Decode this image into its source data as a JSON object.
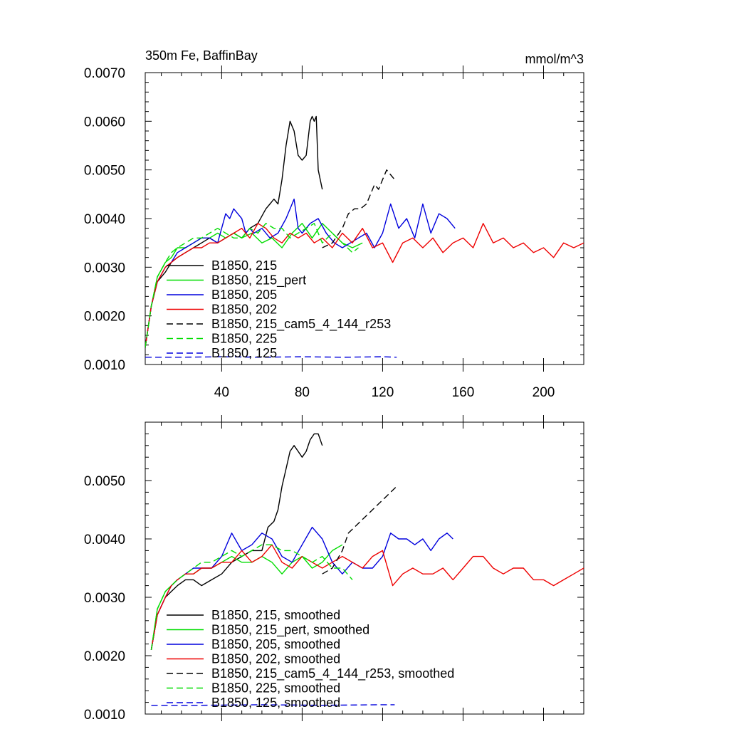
{
  "chart_data": [
    {
      "type": "line",
      "title": "350m Fe, BaffinBay",
      "units": "mmol/m^3",
      "xlim": [
        2,
        220
      ],
      "ylim": [
        0.001,
        0.007
      ],
      "xticks": [
        40,
        80,
        120,
        160,
        200
      ],
      "yticks": [
        0.001,
        0.002,
        0.003,
        0.004,
        0.005,
        0.006,
        0.007
      ],
      "ytick_labels": [
        "0.0010",
        "0.0020",
        "0.0030",
        "0.0040",
        "0.0050",
        "0.0060",
        "0.0070"
      ],
      "xtick_labels": [
        "40",
        "80",
        "120",
        "160",
        "200"
      ],
      "legend_position": "bottom-left",
      "grid": false,
      "series": [
        {
          "name": "B1850, 215",
          "color": "#000000",
          "dash": "solid",
          "x": [
            2,
            5,
            8,
            12,
            15,
            18,
            22,
            26,
            30,
            34,
            38,
            42,
            46,
            50,
            54,
            58,
            62,
            64,
            66,
            68,
            70,
            72,
            74,
            76,
            78,
            80,
            82,
            84,
            85,
            86,
            87,
            88,
            90
          ],
          "y": [
            0.00135,
            0.0022,
            0.0027,
            0.0029,
            0.0031,
            0.0032,
            0.0033,
            0.0034,
            0.0035,
            0.0036,
            0.0035,
            0.0036,
            0.0037,
            0.0036,
            0.0038,
            0.0039,
            0.0042,
            0.0043,
            0.0044,
            0.0043,
            0.0048,
            0.0055,
            0.006,
            0.0058,
            0.0053,
            0.0052,
            0.0053,
            0.006,
            0.0061,
            0.006,
            0.0061,
            0.005,
            0.0046
          ]
        },
        {
          "name": "B1850, 215_pert",
          "color": "#00dd00",
          "dash": "solid",
          "x": [
            2,
            5,
            8,
            12,
            15,
            18,
            22,
            26,
            30,
            34,
            38,
            42,
            46,
            50,
            55,
            60,
            65,
            70,
            75,
            80,
            85,
            90,
            95,
            100,
            105,
            110
          ],
          "y": [
            0.00135,
            0.0022,
            0.0028,
            0.0031,
            0.0032,
            0.0034,
            0.0034,
            0.0035,
            0.0036,
            0.0036,
            0.0037,
            0.0036,
            0.0037,
            0.0036,
            0.0037,
            0.0035,
            0.0036,
            0.0034,
            0.0037,
            0.0039,
            0.0036,
            0.0039,
            0.0037,
            0.0035,
            0.0034,
            0.0035
          ]
        },
        {
          "name": "B1850, 205",
          "color": "#0000dd",
          "dash": "solid",
          "x": [
            2,
            5,
            8,
            12,
            15,
            18,
            22,
            26,
            30,
            34,
            38,
            42,
            44,
            46,
            48,
            50,
            52,
            54,
            56,
            60,
            64,
            68,
            72,
            76,
            78,
            80,
            84,
            88,
            92,
            96,
            100,
            104,
            108,
            112,
            116,
            120,
            124,
            128,
            132,
            136,
            140,
            144,
            148,
            152,
            156
          ],
          "y": [
            0.00135,
            0.0022,
            0.0027,
            0.003,
            0.0031,
            0.0033,
            0.0034,
            0.0035,
            0.0036,
            0.0036,
            0.0035,
            0.0041,
            0.004,
            0.0042,
            0.0041,
            0.004,
            0.0037,
            0.0038,
            0.0037,
            0.0038,
            0.0036,
            0.0037,
            0.004,
            0.0044,
            0.0038,
            0.0037,
            0.0039,
            0.004,
            0.0037,
            0.0035,
            0.0034,
            0.0035,
            0.0036,
            0.0037,
            0.0034,
            0.0037,
            0.0043,
            0.0038,
            0.004,
            0.0036,
            0.0043,
            0.0037,
            0.0041,
            0.004,
            0.0038
          ]
        },
        {
          "name": "B1850, 202",
          "color": "#ee0000",
          "dash": "solid",
          "x": [
            2,
            5,
            8,
            12,
            15,
            18,
            22,
            26,
            30,
            34,
            38,
            42,
            46,
            50,
            54,
            58,
            62,
            66,
            70,
            74,
            78,
            82,
            86,
            90,
            95,
            100,
            105,
            110,
            115,
            120,
            125,
            130,
            135,
            140,
            145,
            150,
            155,
            160,
            165,
            170,
            175,
            180,
            185,
            190,
            195,
            200,
            205,
            210,
            215,
            220
          ],
          "y": [
            0.00135,
            0.0022,
            0.0027,
            0.003,
            0.0031,
            0.0032,
            0.0033,
            0.0034,
            0.0034,
            0.0035,
            0.0035,
            0.0036,
            0.0037,
            0.0038,
            0.0036,
            0.0039,
            0.0038,
            0.0036,
            0.0035,
            0.0037,
            0.0036,
            0.0037,
            0.0035,
            0.0036,
            0.0034,
            0.0037,
            0.0035,
            0.0038,
            0.0034,
            0.0035,
            0.0031,
            0.0035,
            0.0036,
            0.0034,
            0.0036,
            0.0033,
            0.0035,
            0.0036,
            0.0034,
            0.0039,
            0.0035,
            0.0036,
            0.0034,
            0.0035,
            0.0033,
            0.0034,
            0.0032,
            0.0035,
            0.0034,
            0.0035
          ]
        },
        {
          "name": "B1850, 215_cam5_4_144_r253",
          "color": "#000000",
          "dash": "dashed",
          "x": [
            90,
            95,
            100,
            103,
            106,
            109,
            112,
            114,
            116,
            118,
            120,
            122,
            124,
            126
          ],
          "y": [
            0.0034,
            0.0035,
            0.0038,
            0.0041,
            0.0042,
            0.0042,
            0.0043,
            0.0045,
            0.0047,
            0.0046,
            0.0048,
            0.005,
            0.0049,
            0.0048
          ]
        },
        {
          "name": "B1850, 225",
          "color": "#00dd00",
          "dash": "dashed",
          "x": [
            2,
            5,
            8,
            12,
            15,
            18,
            22,
            26,
            30,
            34,
            38,
            42,
            46,
            50,
            54,
            58,
            62,
            66,
            70,
            74,
            78,
            82,
            86,
            90,
            95,
            100,
            105,
            108
          ],
          "y": [
            0.00135,
            0.0022,
            0.0028,
            0.0031,
            0.0033,
            0.0034,
            0.0035,
            0.0036,
            0.0036,
            0.0037,
            0.0038,
            0.0037,
            0.0036,
            0.0036,
            0.0038,
            0.0037,
            0.0039,
            0.0038,
            0.0038,
            0.0036,
            0.0037,
            0.0038,
            0.0039,
            0.0035,
            0.0037,
            0.0035,
            0.0033,
            0.0034
          ]
        },
        {
          "name": "B1850, 125",
          "color": "#0000dd",
          "dash": "dashed",
          "x": [
            2,
            20,
            40,
            60,
            80,
            100,
            120,
            127
          ],
          "y": [
            0.00115,
            0.00115,
            0.00116,
            0.00115,
            0.00116,
            0.00115,
            0.00116,
            0.00115
          ]
        }
      ]
    },
    {
      "type": "line",
      "title": "",
      "xlim": [
        2,
        220
      ],
      "ylim": [
        0.001,
        0.006
      ],
      "xticks": [
        40,
        80,
        120,
        160,
        200
      ],
      "yticks": [
        0.001,
        0.002,
        0.003,
        0.004,
        0.005
      ],
      "ytick_labels": [
        "0.0010",
        "0.0020",
        "0.0030",
        "0.0040",
        "0.0050"
      ],
      "legend_position": "bottom-left",
      "grid": false,
      "series": [
        {
          "name": "B1850, 215, smoothed",
          "color": "#000000",
          "dash": "solid",
          "x": [
            5,
            8,
            12,
            15,
            18,
            22,
            26,
            30,
            35,
            40,
            45,
            50,
            55,
            60,
            63,
            66,
            68,
            70,
            72,
            74,
            76,
            78,
            80,
            82,
            84,
            86,
            88,
            90
          ],
          "y": [
            0.0021,
            0.0027,
            0.003,
            0.0031,
            0.0032,
            0.0033,
            0.0033,
            0.0032,
            0.0033,
            0.0034,
            0.0036,
            0.0037,
            0.0038,
            0.0038,
            0.0042,
            0.0043,
            0.0045,
            0.0049,
            0.0052,
            0.0055,
            0.0056,
            0.0055,
            0.0054,
            0.0055,
            0.0057,
            0.0058,
            0.0058,
            0.0056
          ]
        },
        {
          "name": "B1850, 215_pert, smoothed",
          "color": "#00dd00",
          "dash": "solid",
          "x": [
            5,
            8,
            12,
            15,
            18,
            22,
            26,
            30,
            35,
            40,
            45,
            50,
            55,
            60,
            65,
            70,
            75,
            80,
            85,
            90,
            95,
            100
          ],
          "y": [
            0.0021,
            0.0028,
            0.0031,
            0.0032,
            0.0033,
            0.0034,
            0.0034,
            0.0035,
            0.0035,
            0.0036,
            0.0037,
            0.0036,
            0.0036,
            0.0037,
            0.0036,
            0.0034,
            0.0036,
            0.0037,
            0.0035,
            0.0036,
            0.0038,
            0.0039
          ]
        },
        {
          "name": "B1850, 205, smoothed",
          "color": "#0000dd",
          "dash": "solid",
          "x": [
            5,
            8,
            12,
            15,
            18,
            22,
            26,
            30,
            35,
            40,
            45,
            50,
            55,
            60,
            65,
            70,
            75,
            80,
            85,
            90,
            95,
            100,
            105,
            110,
            115,
            120,
            124,
            128,
            132,
            136,
            140,
            144,
            148,
            152,
            155
          ],
          "y": [
            0.0021,
            0.0027,
            0.003,
            0.0032,
            0.0033,
            0.0034,
            0.0035,
            0.0035,
            0.0035,
            0.0037,
            0.0041,
            0.0038,
            0.0039,
            0.0041,
            0.004,
            0.0037,
            0.0036,
            0.0039,
            0.0042,
            0.004,
            0.0036,
            0.0034,
            0.0036,
            0.0035,
            0.0035,
            0.0037,
            0.0041,
            0.004,
            0.004,
            0.0039,
            0.004,
            0.0038,
            0.004,
            0.0041,
            0.004
          ]
        },
        {
          "name": "B1850, 202, smoothed",
          "color": "#ee0000",
          "dash": "solid",
          "x": [
            5,
            8,
            12,
            15,
            18,
            22,
            26,
            30,
            35,
            40,
            45,
            50,
            55,
            60,
            65,
            70,
            75,
            80,
            85,
            90,
            95,
            100,
            105,
            110,
            115,
            120,
            125,
            130,
            135,
            140,
            145,
            150,
            155,
            160,
            165,
            170,
            175,
            180,
            185,
            190,
            195,
            200,
            205,
            210,
            215,
            220
          ],
          "y": [
            0.0021,
            0.0027,
            0.003,
            0.0032,
            0.0033,
            0.0034,
            0.0034,
            0.0035,
            0.0035,
            0.0036,
            0.0036,
            0.0038,
            0.0036,
            0.0037,
            0.0039,
            0.0036,
            0.0035,
            0.0037,
            0.0036,
            0.0035,
            0.0036,
            0.0037,
            0.0036,
            0.0035,
            0.0037,
            0.0038,
            0.0032,
            0.0034,
            0.0035,
            0.0034,
            0.0034,
            0.0035,
            0.0033,
            0.0035,
            0.0037,
            0.0037,
            0.0035,
            0.0034,
            0.0035,
            0.0035,
            0.0033,
            0.0033,
            0.0032,
            0.0033,
            0.0034,
            0.0035
          ]
        },
        {
          "name": "B1850, 215_cam5_4_144_r253, smoothed",
          "color": "#000000",
          "dash": "dashed",
          "x": [
            90,
            95,
            100,
            103,
            106,
            109,
            112,
            115,
            118,
            121,
            124,
            127
          ],
          "y": [
            0.0034,
            0.0035,
            0.0038,
            0.0041,
            0.0042,
            0.0043,
            0.0044,
            0.0045,
            0.0046,
            0.0047,
            0.0048,
            0.0049
          ]
        },
        {
          "name": "B1850, 225, smoothed",
          "color": "#00dd00",
          "dash": "dashed",
          "x": [
            5,
            8,
            12,
            15,
            18,
            22,
            26,
            30,
            35,
            40,
            45,
            50,
            55,
            60,
            65,
            70,
            75,
            80,
            85,
            90,
            95,
            100,
            105
          ],
          "y": [
            0.0021,
            0.0028,
            0.0031,
            0.0032,
            0.0033,
            0.0034,
            0.0035,
            0.0036,
            0.0036,
            0.0037,
            0.0038,
            0.0037,
            0.0038,
            0.0039,
            0.0039,
            0.0038,
            0.0038,
            0.0037,
            0.0036,
            0.0037,
            0.0035,
            0.0035,
            0.0033
          ]
        },
        {
          "name": "B1850, 125, smoothed",
          "color": "#0000dd",
          "dash": "dashed",
          "x": [
            5,
            30,
            60,
            90,
            120,
            126
          ],
          "y": [
            0.00115,
            0.00115,
            0.00116,
            0.00115,
            0.00116,
            0.00116
          ]
        }
      ]
    }
  ]
}
